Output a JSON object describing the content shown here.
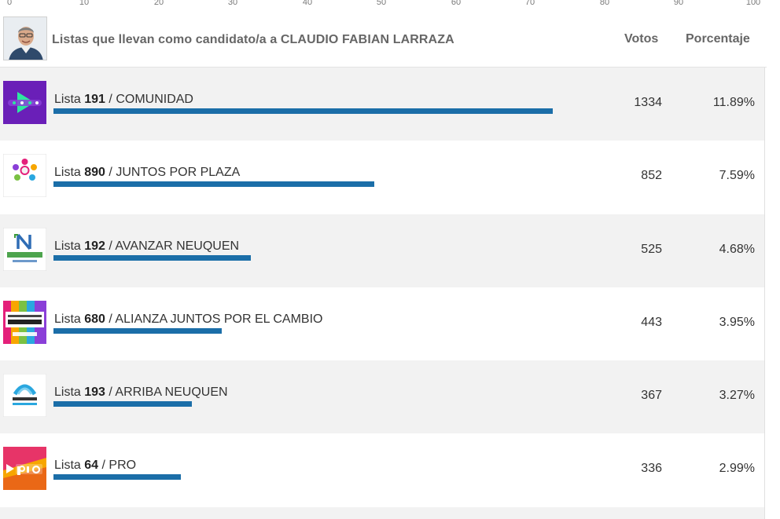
{
  "scale": {
    "ticks": [
      "0",
      "10",
      "20",
      "30",
      "40",
      "50",
      "60",
      "70",
      "80",
      "90",
      "100"
    ]
  },
  "header": {
    "title": "Listas que llevan como candidato/a a CLAUDIO FABIAN LARRAZA",
    "col_votos": "Votos",
    "col_porcentaje": "Porcentaje"
  },
  "lists": [
    {
      "prefix": "Lista",
      "number": "191",
      "separator": "/",
      "party": "COMUNIDAD",
      "votes": "1334",
      "percent": "11.89%",
      "bar_level": 73,
      "logo": "comunidad-logo"
    },
    {
      "prefix": "Lista",
      "number": "890",
      "separator": "/",
      "party": "JUNTOS POR PLAZA",
      "votes": "852",
      "percent": "7.59%",
      "bar_level": 49,
      "logo": "juntos-por-plaza-logo",
      "logo_text": "JUNTOS POR PLAZA"
    },
    {
      "prefix": "Lista",
      "number": "192",
      "separator": "/",
      "party": "AVANZAR NEUQUEN",
      "votes": "525",
      "percent": "4.68%",
      "bar_level": 32.5,
      "logo": "avanzar-neuquen-logo",
      "logo_text": "AVANZAR NEUQUÉN"
    },
    {
      "prefix": "Lista",
      "number": "680",
      "separator": "/",
      "party": "ALIANZA JUNTOS POR EL CAMBIO",
      "votes": "443",
      "percent": "3.95%",
      "bar_level": 28.5,
      "logo": "juntos-por-el-cambio-logo",
      "logo_text": "Juntos por el CAMBIO Neuquén"
    },
    {
      "prefix": "Lista",
      "number": "193",
      "separator": "/",
      "party": "ARRIBA NEUQUEN",
      "votes": "367",
      "percent": "3.27%",
      "bar_level": 24.5,
      "logo": "arriba-neuquen-logo",
      "logo_text": "ARRIBA NEUQUÉN"
    },
    {
      "prefix": "Lista",
      "number": "64",
      "separator": "/",
      "party": "PRO",
      "votes": "336",
      "percent": "2.99%",
      "bar_level": 23,
      "logo": "pro-logo",
      "logo_text": "pro"
    }
  ],
  "colors": {
    "bar": "#1b6ea8",
    "row_alt": "#f2f2f2",
    "comunidad": "#6a1fb8",
    "comunidad_accent": "#2ee6a0",
    "avanzar": "#3a9a3a",
    "pro": "#f7a600"
  }
}
